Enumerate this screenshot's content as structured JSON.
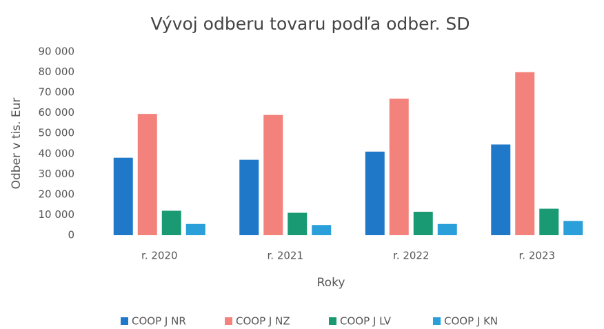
{
  "chart_data": {
    "type": "bar",
    "title": "Vývoj odberu tovaru podľa odber. SD",
    "xlabel": "Roky",
    "ylabel": "Odber v tis. Eur",
    "categories": [
      "r. 2020",
      "r. 2021",
      "r. 2022",
      "r. 2023"
    ],
    "series": [
      {
        "name": "COOP J NR",
        "color": "#1f78c8",
        "values": [
          38000,
          37000,
          41000,
          44500
        ]
      },
      {
        "name": "COOP J NZ",
        "color": "#f4827c",
        "values": [
          59500,
          59000,
          67000,
          80000
        ]
      },
      {
        "name": "COOP J LV",
        "color": "#199a72",
        "values": [
          12000,
          11000,
          11500,
          13000
        ]
      },
      {
        "name": "COOP J KN",
        "color": "#2a9fd9",
        "values": [
          5500,
          5000,
          5500,
          7000
        ]
      }
    ],
    "ylim": [
      0,
      90000
    ],
    "yticks": [
      0,
      {
        "value": 10000,
        "label": "10 000"
      },
      {
        "value": 20000,
        "label": "20 000"
      },
      {
        "value": 30000,
        "label": "30 000"
      },
      {
        "value": 40000,
        "label": "40 000"
      },
      {
        "value": 50000,
        "label": "50 000"
      },
      {
        "value": 60000,
        "label": "60 000"
      },
      {
        "value": 70000,
        "label": "70 000"
      },
      {
        "value": 80000,
        "label": "80 000"
      },
      {
        "value": 90000,
        "label": "90 000"
      }
    ],
    "grid": false,
    "legend": "bottom"
  }
}
